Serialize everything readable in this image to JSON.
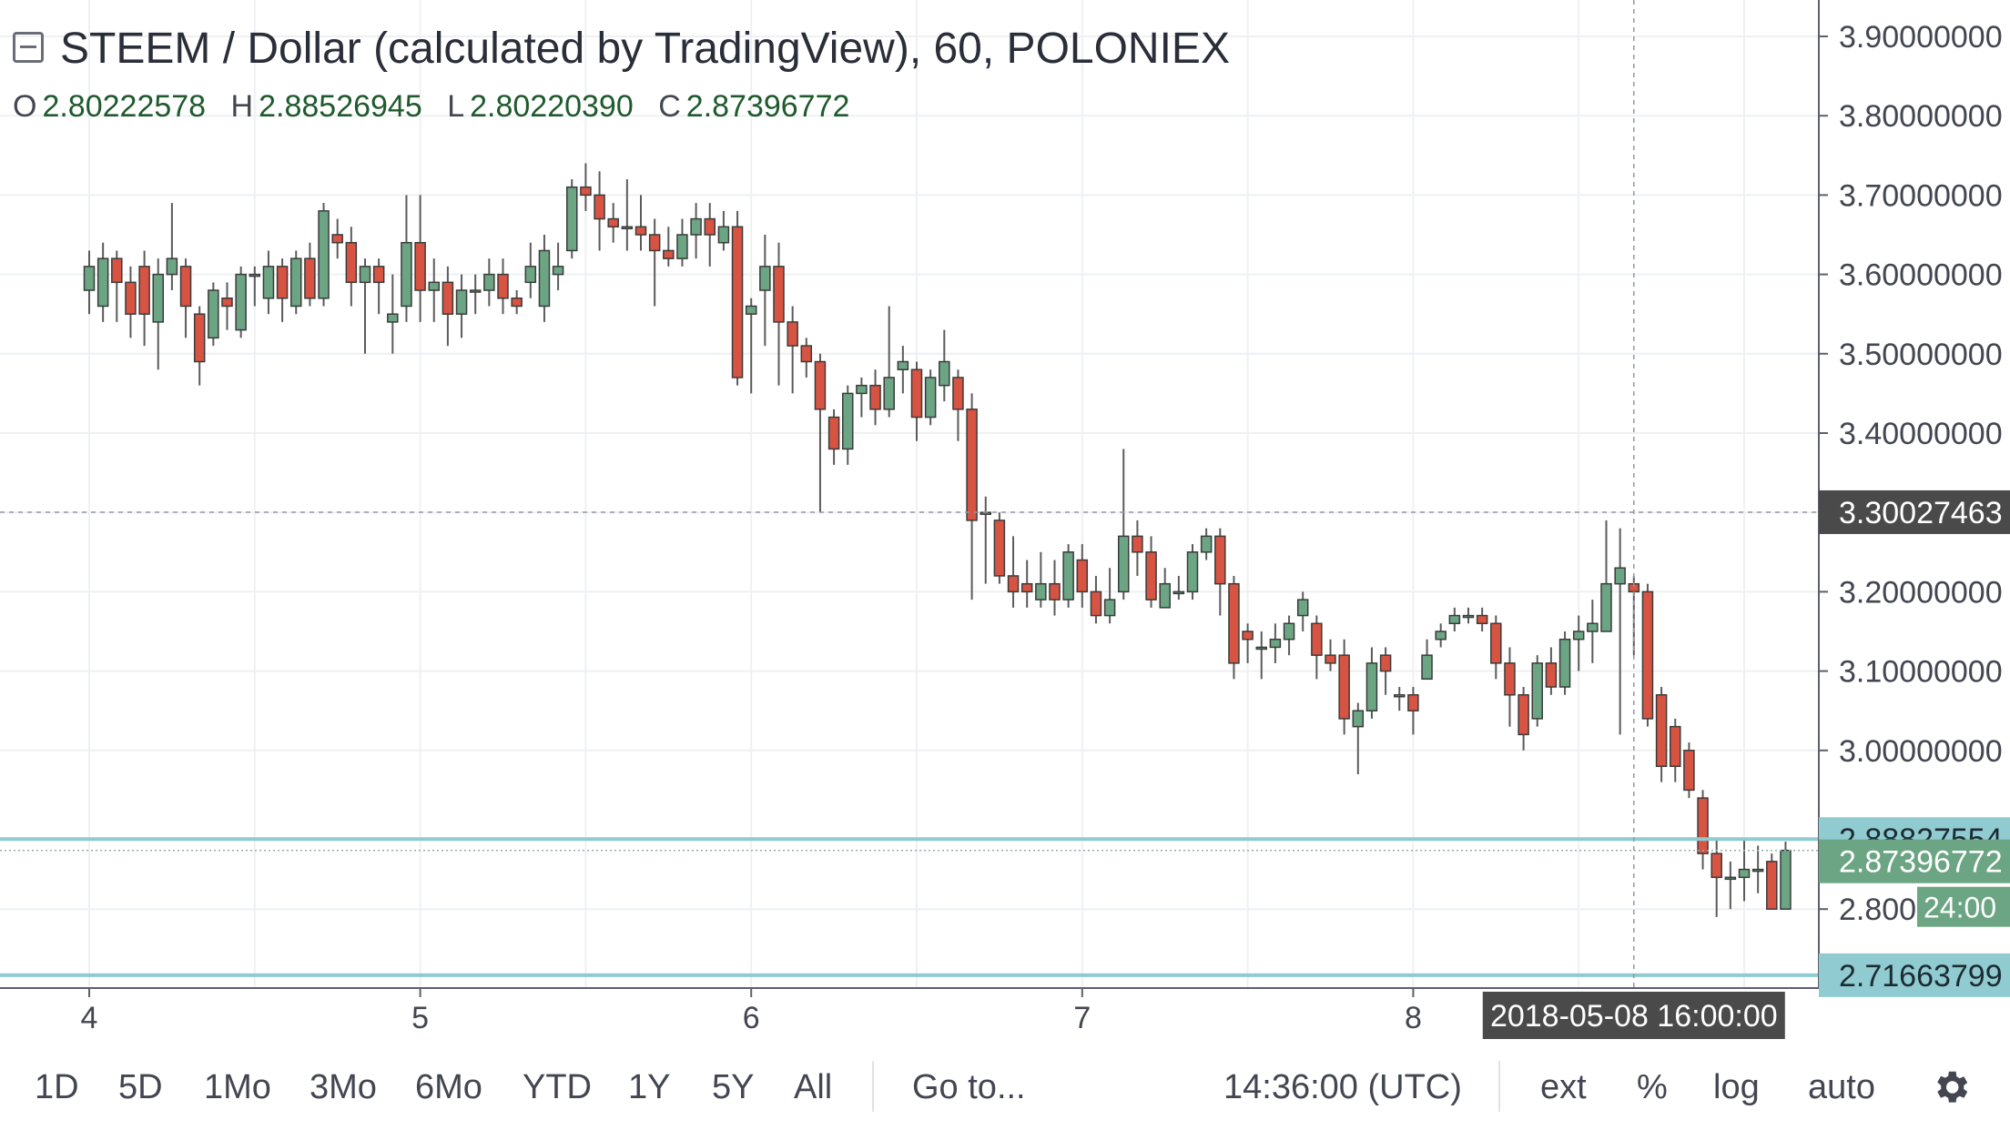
{
  "header": {
    "title": "STEEM / Dollar (calculated by TradingView), 60, POLONIEX",
    "ohlc": {
      "o_label": "O",
      "o": "2.80222578",
      "h_label": "H",
      "h": "2.88526945",
      "l_label": "L",
      "l": "2.80220390",
      "c_label": "C",
      "c": "2.87396772"
    }
  },
  "colors": {
    "up": "#6ba583",
    "down": "#d75442",
    "wick": "#5b5b5b",
    "hline": "#8fcbd0",
    "crosshair_tag": "#4a4a4a",
    "price_tag": "#6ba583"
  },
  "chart_data": {
    "type": "candlestick",
    "title": "STEEM / Dollar (calculated by TradingView), 60, POLONIEX",
    "ylim": [
      2.71,
      3.95
    ],
    "y_ticks": [
      "3.90000000",
      "3.80000000",
      "3.70000000",
      "3.60000000",
      "3.50000000",
      "3.40000000",
      "3.30000000",
      "3.20000000",
      "3.10000000",
      "3.00000000",
      "2.80000000"
    ],
    "y_tick_values": [
      3.9,
      3.8,
      3.7,
      3.6,
      3.5,
      3.4,
      3.3,
      3.2,
      3.1,
      3.0,
      2.8
    ],
    "x_ticks": [
      "4",
      "5",
      "6",
      "7",
      "8"
    ],
    "x_tick_values": [
      0,
      24,
      48,
      72,
      96
    ],
    "xlim": [
      -6.5,
      126.5
    ],
    "grid": true,
    "candles": [
      [
        3.58,
        3.61,
        3.63,
        3.55
      ],
      [
        3.56,
        3.62,
        3.64,
        3.54
      ],
      [
        3.62,
        3.59,
        3.63,
        3.54
      ],
      [
        3.59,
        3.55,
        3.61,
        3.52
      ],
      [
        3.61,
        3.55,
        3.63,
        3.51
      ],
      [
        3.54,
        3.6,
        3.62,
        3.48
      ],
      [
        3.6,
        3.62,
        3.69,
        3.58
      ],
      [
        3.61,
        3.56,
        3.62,
        3.52
      ],
      [
        3.55,
        3.49,
        3.56,
        3.46
      ],
      [
        3.52,
        3.58,
        3.59,
        3.51
      ],
      [
        3.57,
        3.56,
        3.59,
        3.53
      ],
      [
        3.53,
        3.6,
        3.61,
        3.52
      ],
      [
        3.6,
        3.6,
        3.61,
        3.56
      ],
      [
        3.57,
        3.61,
        3.63,
        3.55
      ],
      [
        3.61,
        3.57,
        3.62,
        3.54
      ],
      [
        3.56,
        3.62,
        3.63,
        3.55
      ],
      [
        3.62,
        3.57,
        3.64,
        3.56
      ],
      [
        3.57,
        3.68,
        3.69,
        3.56
      ],
      [
        3.65,
        3.64,
        3.67,
        3.62
      ],
      [
        3.64,
        3.59,
        3.66,
        3.56
      ],
      [
        3.59,
        3.61,
        3.62,
        3.5
      ],
      [
        3.61,
        3.59,
        3.62,
        3.55
      ],
      [
        3.54,
        3.55,
        3.6,
        3.5
      ],
      [
        3.56,
        3.64,
        3.7,
        3.54
      ],
      [
        3.64,
        3.58,
        3.7,
        3.54
      ],
      [
        3.58,
        3.59,
        3.62,
        3.54
      ],
      [
        3.59,
        3.55,
        3.61,
        3.51
      ],
      [
        3.55,
        3.58,
        3.6,
        3.52
      ],
      [
        3.58,
        3.58,
        3.6,
        3.55
      ],
      [
        3.58,
        3.6,
        3.62,
        3.56
      ],
      [
        3.6,
        3.57,
        3.62,
        3.55
      ],
      [
        3.57,
        3.56,
        3.58,
        3.55
      ],
      [
        3.59,
        3.61,
        3.64,
        3.57
      ],
      [
        3.56,
        3.63,
        3.65,
        3.54
      ],
      [
        3.6,
        3.61,
        3.64,
        3.58
      ],
      [
        3.63,
        3.71,
        3.72,
        3.62
      ],
      [
        3.71,
        3.7,
        3.74,
        3.68
      ],
      [
        3.7,
        3.67,
        3.73,
        3.63
      ],
      [
        3.67,
        3.66,
        3.69,
        3.64
      ],
      [
        3.66,
        3.66,
        3.72,
        3.63
      ],
      [
        3.66,
        3.65,
        3.7,
        3.63
      ],
      [
        3.65,
        3.63,
        3.67,
        3.56
      ],
      [
        3.63,
        3.62,
        3.66,
        3.61
      ],
      [
        3.62,
        3.65,
        3.67,
        3.61
      ],
      [
        3.65,
        3.67,
        3.69,
        3.62
      ],
      [
        3.67,
        3.65,
        3.69,
        3.61
      ],
      [
        3.64,
        3.66,
        3.68,
        3.63
      ],
      [
        3.66,
        3.47,
        3.68,
        3.46
      ],
      [
        3.55,
        3.56,
        3.57,
        3.45
      ],
      [
        3.58,
        3.61,
        3.65,
        3.51
      ],
      [
        3.61,
        3.54,
        3.64,
        3.46
      ],
      [
        3.54,
        3.51,
        3.56,
        3.45
      ],
      [
        3.51,
        3.49,
        3.52,
        3.47
      ],
      [
        3.49,
        3.43,
        3.5,
        3.3
      ],
      [
        3.42,
        3.38,
        3.43,
        3.36
      ],
      [
        3.38,
        3.45,
        3.46,
        3.36
      ],
      [
        3.45,
        3.46,
        3.47,
        3.42
      ],
      [
        3.46,
        3.43,
        3.48,
        3.41
      ],
      [
        3.43,
        3.47,
        3.56,
        3.42
      ],
      [
        3.48,
        3.49,
        3.51,
        3.45
      ],
      [
        3.48,
        3.42,
        3.49,
        3.39
      ],
      [
        3.42,
        3.47,
        3.48,
        3.41
      ],
      [
        3.46,
        3.49,
        3.53,
        3.44
      ],
      [
        3.47,
        3.43,
        3.48,
        3.39
      ],
      [
        3.43,
        3.29,
        3.45,
        3.19
      ],
      [
        3.3,
        3.3,
        3.32,
        3.21
      ],
      [
        3.29,
        3.22,
        3.3,
        3.21
      ],
      [
        3.22,
        3.2,
        3.27,
        3.18
      ],
      [
        3.21,
        3.2,
        3.24,
        3.18
      ],
      [
        3.19,
        3.21,
        3.25,
        3.18
      ],
      [
        3.21,
        3.19,
        3.24,
        3.17
      ],
      [
        3.19,
        3.25,
        3.26,
        3.18
      ],
      [
        3.24,
        3.2,
        3.26,
        3.18
      ],
      [
        3.2,
        3.17,
        3.22,
        3.16
      ],
      [
        3.17,
        3.19,
        3.23,
        3.16
      ],
      [
        3.2,
        3.27,
        3.38,
        3.19
      ],
      [
        3.27,
        3.25,
        3.29,
        3.22
      ],
      [
        3.25,
        3.19,
        3.27,
        3.18
      ],
      [
        3.18,
        3.21,
        3.23,
        3.18
      ],
      [
        3.2,
        3.2,
        3.22,
        3.19
      ],
      [
        3.2,
        3.25,
        3.26,
        3.19
      ],
      [
        3.25,
        3.27,
        3.28,
        3.24
      ],
      [
        3.27,
        3.21,
        3.28,
        3.17
      ],
      [
        3.21,
        3.11,
        3.22,
        3.09
      ],
      [
        3.15,
        3.14,
        3.16,
        3.11
      ],
      [
        3.13,
        3.13,
        3.15,
        3.09
      ],
      [
        3.13,
        3.14,
        3.16,
        3.11
      ],
      [
        3.14,
        3.16,
        3.17,
        3.12
      ],
      [
        3.17,
        3.19,
        3.2,
        3.15
      ],
      [
        3.16,
        3.12,
        3.17,
        3.09
      ],
      [
        3.12,
        3.11,
        3.14,
        3.1
      ],
      [
        3.12,
        3.04,
        3.14,
        3.02
      ],
      [
        3.03,
        3.05,
        3.06,
        2.97
      ],
      [
        3.05,
        3.11,
        3.13,
        3.04
      ],
      [
        3.12,
        3.1,
        3.13,
        3.07
      ],
      [
        3.07,
        3.07,
        3.08,
        3.05
      ],
      [
        3.07,
        3.05,
        3.08,
        3.02
      ],
      [
        3.09,
        3.12,
        3.14,
        3.09
      ],
      [
        3.14,
        3.15,
        3.16,
        3.13
      ],
      [
        3.16,
        3.17,
        3.18,
        3.15
      ],
      [
        3.17,
        3.17,
        3.18,
        3.16
      ],
      [
        3.17,
        3.16,
        3.18,
        3.15
      ],
      [
        3.16,
        3.11,
        3.17,
        3.09
      ],
      [
        3.11,
        3.07,
        3.13,
        3.03
      ],
      [
        3.07,
        3.02,
        3.08,
        3.0
      ],
      [
        3.04,
        3.11,
        3.12,
        3.03
      ],
      [
        3.11,
        3.08,
        3.13,
        3.07
      ],
      [
        3.08,
        3.14,
        3.15,
        3.07
      ],
      [
        3.14,
        3.15,
        3.17,
        3.1
      ],
      [
        3.15,
        3.16,
        3.19,
        3.11
      ],
      [
        3.15,
        3.21,
        3.29,
        3.15
      ],
      [
        3.21,
        3.23,
        3.28,
        3.02
      ],
      [
        3.21,
        3.2,
        3.22,
        3.12
      ],
      [
        3.2,
        3.04,
        3.21,
        3.03
      ],
      [
        3.07,
        2.98,
        3.08,
        2.96
      ],
      [
        3.03,
        2.98,
        3.04,
        2.96
      ],
      [
        3.0,
        2.95,
        3.01,
        2.94
      ],
      [
        2.94,
        2.87,
        2.95,
        2.85
      ],
      [
        2.87,
        2.84,
        2.89,
        2.79
      ],
      [
        2.84,
        2.84,
        2.86,
        2.8
      ],
      [
        2.84,
        2.85,
        2.89,
        2.81
      ],
      [
        2.85,
        2.85,
        2.88,
        2.82
      ],
      [
        2.86,
        2.8,
        2.87,
        2.8
      ],
      [
        2.8,
        2.874,
        2.885,
        2.802
      ]
    ],
    "horizontal_lines": [
      {
        "value": 2.88827554,
        "label": "2.88827554"
      },
      {
        "value": 2.71663799,
        "label": "2.71663799"
      }
    ],
    "crosshair": {
      "price": 3.30027463,
      "price_label": "3.30027463",
      "time_label": "2018-05-08 16:00:00",
      "index": 112
    },
    "last_price": {
      "value": 2.87396772,
      "label": "2.87396772",
      "countdown": "24:00"
    }
  },
  "toolbar": {
    "ranges": [
      "1D",
      "5D",
      "1Mo",
      "3Mo",
      "6Mo",
      "YTD",
      "1Y",
      "5Y",
      "All"
    ],
    "goto": "Go to...",
    "clock": "14:36:00 (UTC)",
    "ext": "ext",
    "percent": "%",
    "log": "log",
    "auto": "auto"
  }
}
